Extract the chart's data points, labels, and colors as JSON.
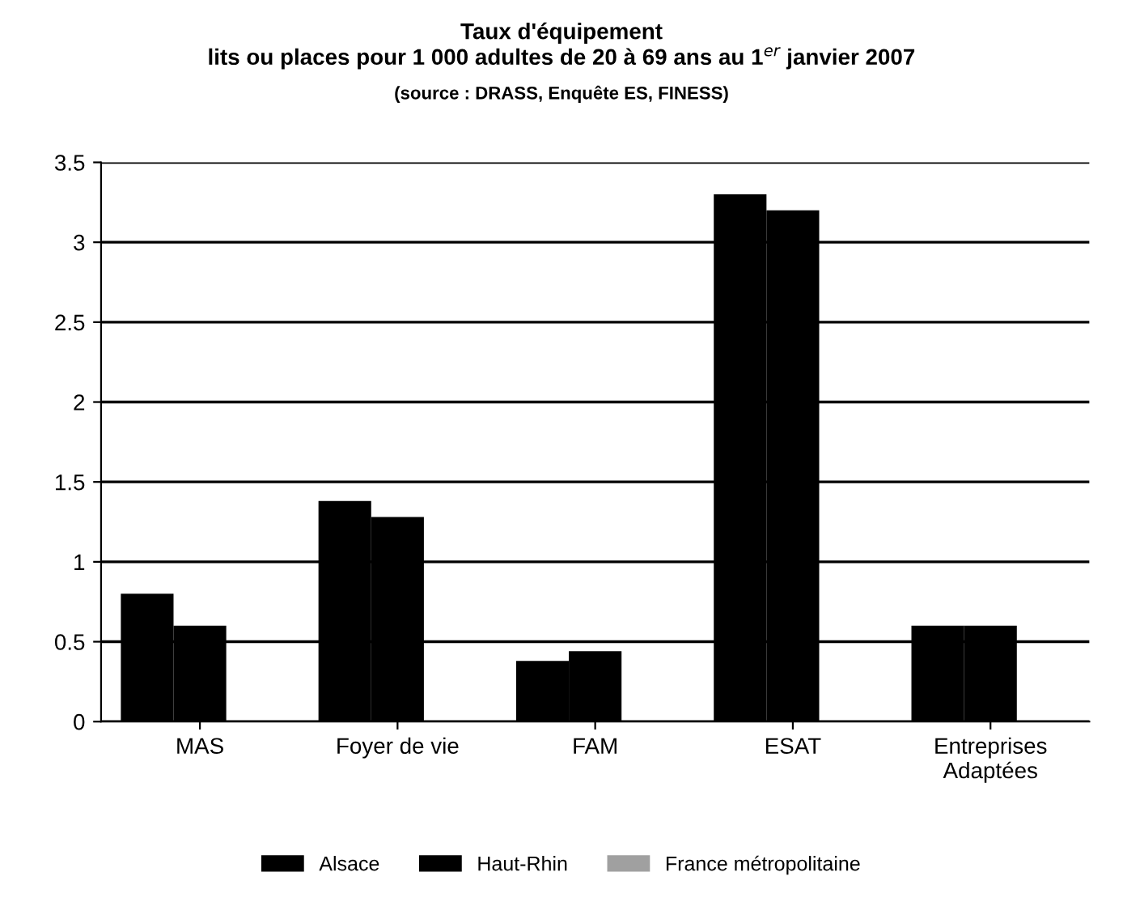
{
  "chart_data": {
    "type": "bar",
    "title": "Taux d'équipement\nlits ou places pour 1 000 adultes de 20 à 69 ans au 1$^{er}$ janvier 2007",
    "subtitle": "(source : DRASS, Enquête ES, FINESS)",
    "categories": [
      "MAS",
      "Foyer de vie",
      "FAM",
      "ESAT",
      "Entreprises\nAdaptées"
    ],
    "series": [
      {
        "name": "Alsace",
        "color": "#000000",
        "values": [
          0.8,
          1.38,
          0.38,
          3.3,
          0.6
        ]
      },
      {
        "name": "Haut-Rhin",
        "color": "#000000",
        "values": [
          0.6,
          1.28,
          0.44,
          3.2,
          0.6
        ]
      },
      {
        "name": "France métropolitaine",
        "color": "#a0a0a0",
        "values": [
          null,
          null,
          null,
          null,
          null
        ]
      }
    ],
    "ylim": [
      0,
      3.5
    ],
    "yticks": [
      0,
      0.5,
      1,
      1.5,
      2,
      2.5,
      3,
      3.5
    ],
    "grid": "y",
    "legend": "bottom"
  }
}
